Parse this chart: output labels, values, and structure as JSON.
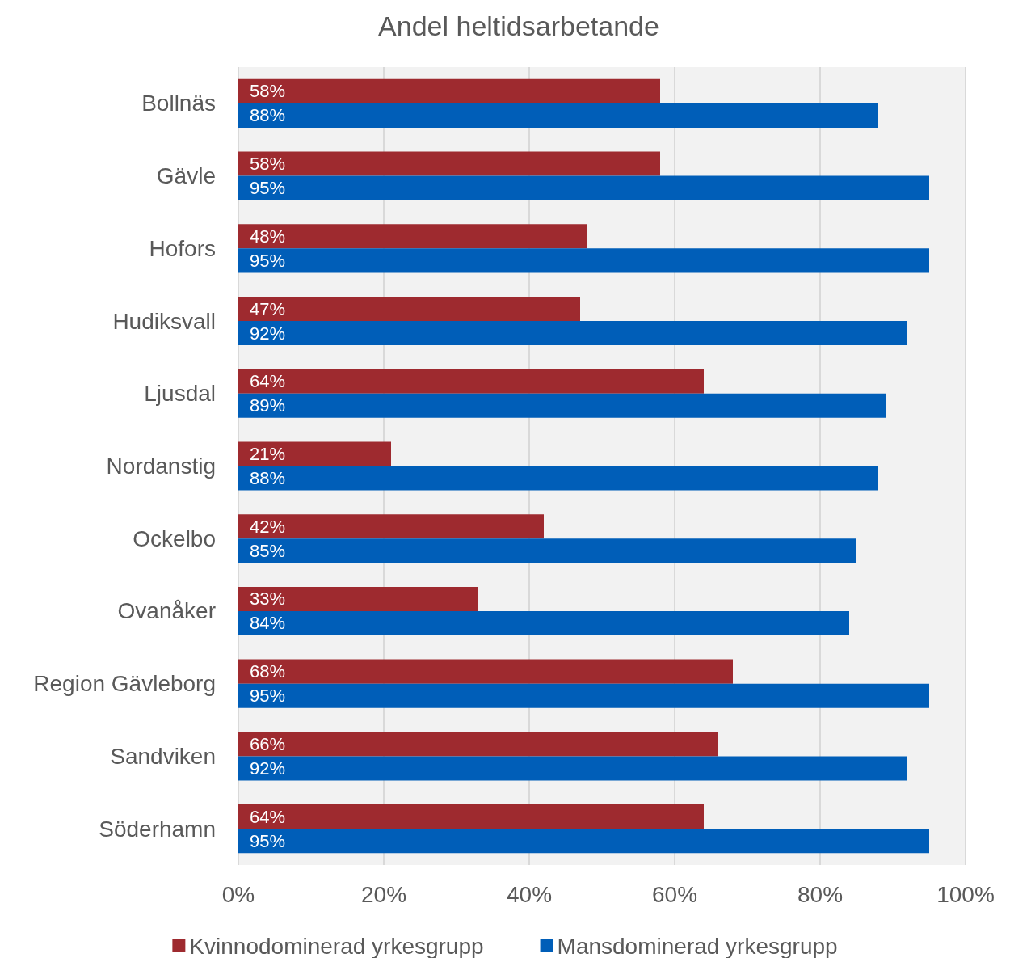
{
  "chart_data": {
    "type": "bar",
    "orientation": "horizontal",
    "title": "Andel heltidsarbetande",
    "categories": [
      "Bollnäs",
      "Gävle",
      "Hofors",
      "Hudiksvall",
      "Ljusdal",
      "Nordanstig",
      "Ockelbo",
      "Ovanåker",
      "Region Gävleborg",
      "Sandviken",
      "Söderhamn"
    ],
    "series": [
      {
        "name": "Kvinnodominerad yrkesgrupp",
        "color": "#9e2a2f",
        "values": [
          58,
          58,
          48,
          47,
          64,
          21,
          42,
          33,
          68,
          66,
          64
        ],
        "value_labels": [
          "58%",
          "58%",
          "48%",
          "47%",
          "64%",
          "21%",
          "42%",
          "33%",
          "68%",
          "66%",
          "64%"
        ]
      },
      {
        "name": "Mansdominerad yrkesgrupp",
        "color": "#005eb8",
        "values": [
          88,
          95,
          95,
          92,
          89,
          88,
          85,
          84,
          95,
          92,
          95
        ],
        "value_labels": [
          "88%",
          "95%",
          "95%",
          "92%",
          "89%",
          "88%",
          "85%",
          "84%",
          "95%",
          "92%",
          "95%"
        ]
      }
    ],
    "xlim": [
      0,
      100
    ],
    "xticks": [
      {
        "value": 0,
        "label": "0%"
      },
      {
        "value": 20,
        "label": "20%"
      },
      {
        "value": 40,
        "label": "40%"
      },
      {
        "value": 60,
        "label": "60%"
      },
      {
        "value": 80,
        "label": "80%"
      },
      {
        "value": 100,
        "label": "100%"
      }
    ],
    "grid": "x",
    "legend": "bottom"
  }
}
